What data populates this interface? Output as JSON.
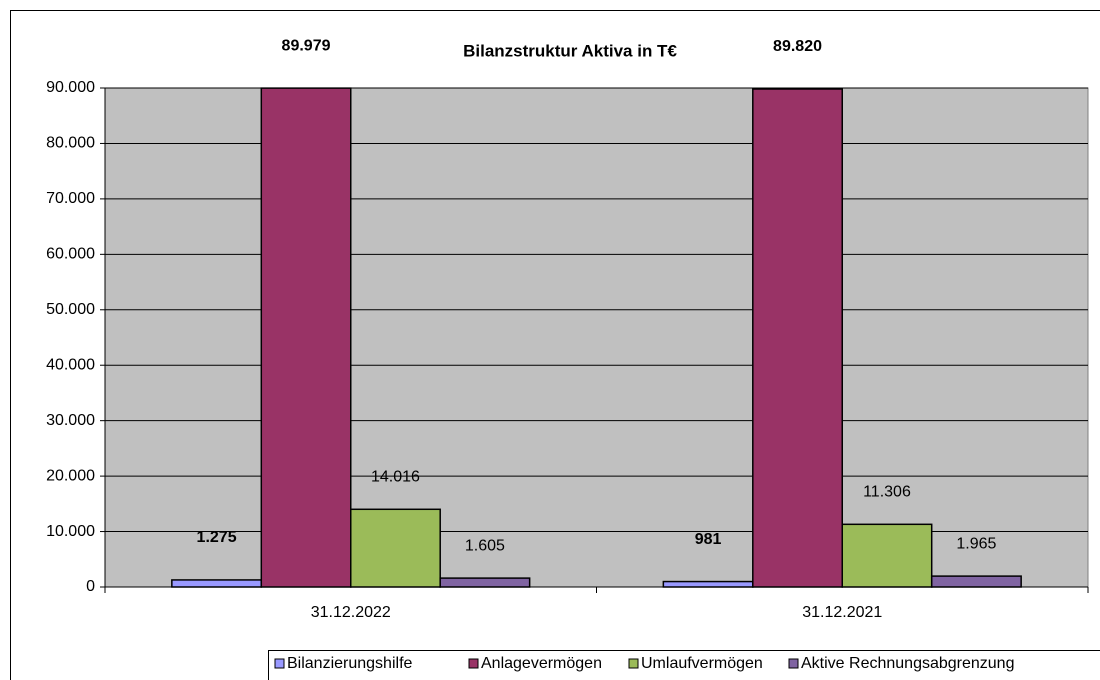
{
  "chart_data": {
    "type": "bar",
    "title": "Bilanzstruktur Aktiva in T€",
    "categories": [
      "31.12.2022",
      "31.12.2021"
    ],
    "series": [
      {
        "name": "Bilanzierungshilfe",
        "color": "#9999ff",
        "values": [
          1275,
          981
        ],
        "value_labels": [
          "1.275",
          "981"
        ]
      },
      {
        "name": "Anlagevermögen",
        "color": "#993366",
        "values": [
          89979,
          89820
        ],
        "value_labels": [
          "89.979",
          "89.820"
        ]
      },
      {
        "name": "Umlaufvermögen",
        "color": "#9bbb59",
        "values": [
          14016,
          11306
        ],
        "value_labels": [
          "14.016",
          "11.306"
        ]
      },
      {
        "name": "Aktive Rechnungsabgrenzung",
        "color": "#8064a2",
        "values": [
          1605,
          1965
        ],
        "value_labels": [
          "1.605",
          "1.965"
        ]
      }
    ],
    "ylim": [
      0,
      90000
    ],
    "yticks": [
      0,
      {
        "value": 10000,
        "label": "10.000"
      },
      {
        "value": 20000,
        "label": "20.000"
      },
      {
        "value": 30000,
        "label": "30.000"
      },
      {
        "value": 40000,
        "label": "40.000"
      },
      {
        "value": 50000,
        "label": "50.000"
      },
      {
        "value": 60000,
        "label": "60.000"
      },
      {
        "value": 70000,
        "label": "70.000"
      },
      {
        "value": 80000,
        "label": "80.000"
      },
      {
        "value": 90000,
        "label": "90.000"
      }
    ],
    "grid": true,
    "legend": "bottom"
  }
}
